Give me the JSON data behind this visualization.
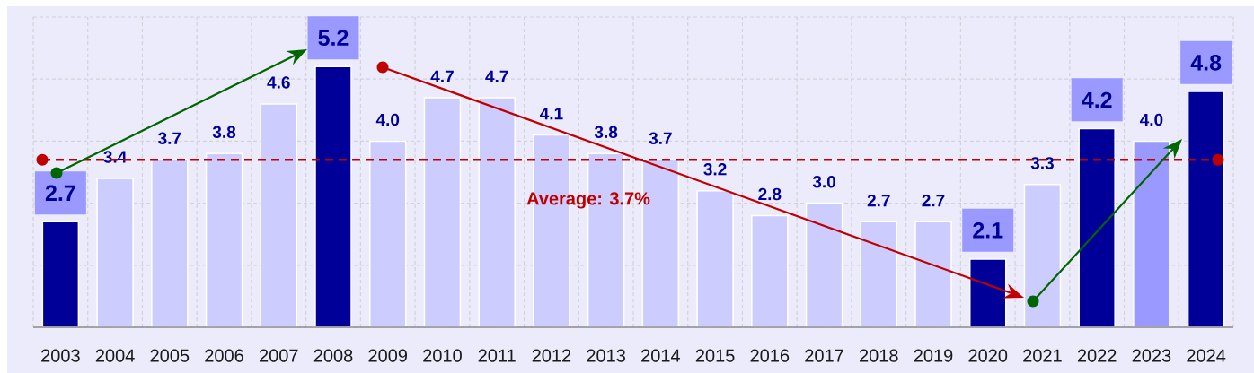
{
  "chart_data": {
    "type": "bar",
    "categories": [
      "2003",
      "2004",
      "2005",
      "2006",
      "2007",
      "2008",
      "2009",
      "2010",
      "2011",
      "2012",
      "2013",
      "2014",
      "2015",
      "2016",
      "2017",
      "2018",
      "2019",
      "2020",
      "2021",
      "2022",
      "2023",
      "2024"
    ],
    "values": [
      2.7,
      3.4,
      3.7,
      3.8,
      4.6,
      5.2,
      4.0,
      4.7,
      4.7,
      4.1,
      3.8,
      3.7,
      3.2,
      2.8,
      3.0,
      2.7,
      2.7,
      2.1,
      3.3,
      4.2,
      4.0,
      4.8
    ],
    "colors": [
      "#000099",
      "#ccccff",
      "#ccccff",
      "#ccccff",
      "#ccccff",
      "#000099",
      "#ccccff",
      "#ccccff",
      "#ccccff",
      "#ccccff",
      "#ccccff",
      "#ccccff",
      "#ccccff",
      "#ccccff",
      "#ccccff",
      "#ccccff",
      "#ccccff",
      "#000099",
      "#ccccff",
      "#000099",
      "#9999ff",
      "#000099"
    ],
    "value_labels": [
      "2.7",
      "3.4",
      "3.7",
      "3.8",
      "4.6",
      "5.2",
      "4.0",
      "4.7",
      "4.7",
      "4.1",
      "3.8",
      "3.7",
      "3.2",
      "2.8",
      "3.0",
      "2.7",
      "2.7",
      "2.1",
      "3.3",
      "4.2",
      "4.0",
      "4.8"
    ],
    "ylim": [
      1,
      6
    ],
    "yticks": [
      {
        "value": 1,
        "label": null
      },
      {
        "value": 2,
        "label": null
      },
      {
        "value": 3,
        "label": null
      },
      {
        "value": 4,
        "label": null
      },
      {
        "value": 5,
        "label": null
      },
      {
        "value": 6,
        "label": null
      }
    ],
    "tick_labels": "x",
    "grid": true,
    "ref_lines": [
      {
        "axis": "y",
        "value": 3.7,
        "label": "Average: 3.7%",
        "color": "#c00000",
        "line_style": "dashed"
      }
    ]
  }
}
